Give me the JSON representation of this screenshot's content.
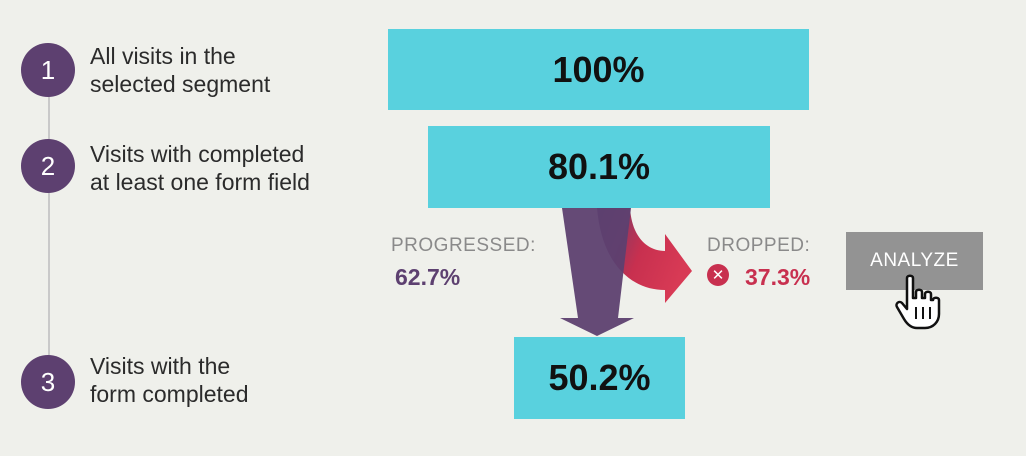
{
  "steps": [
    {
      "number": "1",
      "label": "All visits in the\nselected segment",
      "bar_value": "100%"
    },
    {
      "number": "2",
      "label": "Visits with completed\nat least one form field",
      "bar_value": "80.1%"
    },
    {
      "number": "3",
      "label": "Visits with the\nform completed",
      "bar_value": "50.2%"
    }
  ],
  "progressed": {
    "label": "PROGRESSED:",
    "value": "62.7%",
    "color": "#5d4070"
  },
  "dropped": {
    "label": "DROPPED:",
    "value": "37.3%",
    "color": "#c8304f",
    "icon": "x-circle-icon"
  },
  "analyze_button": {
    "label": "ANALYZE"
  },
  "colors": {
    "bar": "#59d1de",
    "step_circle": "#5d4070",
    "background": "#eff0eb"
  }
}
